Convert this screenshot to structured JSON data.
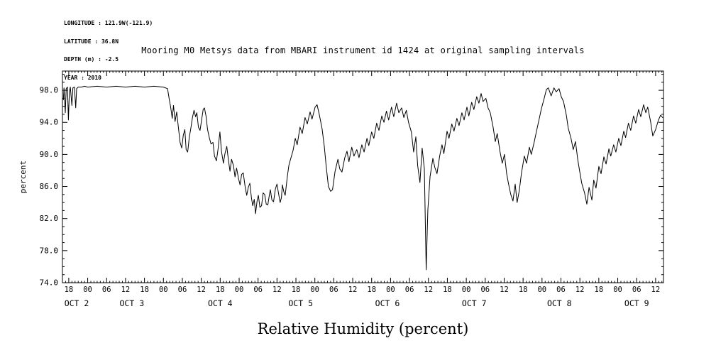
{
  "meta_block": {
    "lines": [
      "LONGITUDE : 121.9W(-121.9)",
      "LATITUDE : 36.8N",
      "DEPTH (m) : -2.5",
      "YEAR : 2010"
    ]
  },
  "chart_data": {
    "type": "line",
    "title": "Mooring M0 Metsys data from MBARI instrument id 1424 at original sampling intervals",
    "xlabel": "Relative Humidity (percent)",
    "ylabel": "percent",
    "x_unit": "hours since Oct 1 2010 00:00",
    "xlim_hours": [
      16,
      206.5
    ],
    "ylim": [
      74,
      100.4
    ],
    "grid": false,
    "legend": "none",
    "y_major_ticks": [
      {
        "value": 98,
        "label": "98.0"
      },
      {
        "value": 94,
        "label": "94.0"
      },
      {
        "value": 90,
        "label": "90.0"
      },
      {
        "value": 86,
        "label": "86.0"
      },
      {
        "value": 82,
        "label": "82.0"
      },
      {
        "value": 78,
        "label": "78.0"
      },
      {
        "value": 74,
        "label": "74.0"
      }
    ],
    "x_hour_ticks": [
      {
        "hour": 18,
        "label": "18"
      },
      {
        "hour": 24,
        "label": "00"
      },
      {
        "hour": 30,
        "label": "06"
      },
      {
        "hour": 36,
        "label": "12"
      },
      {
        "hour": 42,
        "label": "18"
      },
      {
        "hour": 48,
        "label": "00"
      },
      {
        "hour": 54,
        "label": "06"
      },
      {
        "hour": 60,
        "label": "12"
      },
      {
        "hour": 66,
        "label": "18"
      },
      {
        "hour": 72,
        "label": "00"
      },
      {
        "hour": 78,
        "label": "06"
      },
      {
        "hour": 84,
        "label": "12"
      },
      {
        "hour": 90,
        "label": "18"
      },
      {
        "hour": 96,
        "label": "00"
      },
      {
        "hour": 102,
        "label": "06"
      },
      {
        "hour": 108,
        "label": "12"
      },
      {
        "hour": 114,
        "label": "18"
      },
      {
        "hour": 120,
        "label": "00"
      },
      {
        "hour": 126,
        "label": "06"
      },
      {
        "hour": 132,
        "label": "12"
      },
      {
        "hour": 138,
        "label": "18"
      },
      {
        "hour": 144,
        "label": "00"
      },
      {
        "hour": 150,
        "label": "06"
      },
      {
        "hour": 156,
        "label": "12"
      },
      {
        "hour": 162,
        "label": "18"
      },
      {
        "hour": 168,
        "label": "00"
      },
      {
        "hour": 174,
        "label": "06"
      },
      {
        "hour": 180,
        "label": "12"
      },
      {
        "hour": 186,
        "label": "18"
      },
      {
        "hour": 192,
        "label": "00"
      },
      {
        "hour": 198,
        "label": "06"
      },
      {
        "hour": 204,
        "label": "12"
      }
    ],
    "x_date_labels": [
      {
        "label": "OCT 2",
        "hour": 20.5
      },
      {
        "label": "OCT 3",
        "hour": 38
      },
      {
        "label": "OCT 4",
        "hour": 66
      },
      {
        "label": "OCT 5",
        "hour": 91.5
      },
      {
        "label": "OCT 6",
        "hour": 119
      },
      {
        "label": "OCT 7",
        "hour": 146.5
      },
      {
        "label": "OCT 8",
        "hour": 173.5
      },
      {
        "label": "OCT 9",
        "hour": 198
      }
    ],
    "series": [
      {
        "name": "relative_humidity_percent",
        "color": "#000000",
        "points": [
          [
            16.3,
            96.8
          ],
          [
            16.5,
            98.3
          ],
          [
            16.9,
            95.2
          ],
          [
            17.2,
            98.2
          ],
          [
            17.6,
            98.4
          ],
          [
            17.9,
            94.3
          ],
          [
            18.2,
            97.8
          ],
          [
            18.5,
            98.4
          ],
          [
            19.0,
            96.1
          ],
          [
            19.3,
            98.3
          ],
          [
            19.8,
            98.4
          ],
          [
            20.2,
            95.8
          ],
          [
            20.5,
            98.2
          ],
          [
            21.0,
            98.4
          ],
          [
            22.0,
            98.4
          ],
          [
            23.0,
            98.5
          ],
          [
            24.0,
            98.4
          ],
          [
            27.0,
            98.5
          ],
          [
            30.0,
            98.4
          ],
          [
            33.0,
            98.5
          ],
          [
            36.0,
            98.4
          ],
          [
            39.0,
            98.5
          ],
          [
            42.0,
            98.4
          ],
          [
            45.0,
            98.5
          ],
          [
            48.0,
            98.4
          ],
          [
            49.3,
            98.2
          ],
          [
            49.8,
            97.0
          ],
          [
            50.3,
            95.9
          ],
          [
            50.8,
            94.5
          ],
          [
            51.2,
            96.1
          ],
          [
            51.7,
            94.1
          ],
          [
            52.2,
            95.3
          ],
          [
            52.8,
            93.2
          ],
          [
            53.3,
            91.5
          ],
          [
            53.8,
            90.8
          ],
          [
            54.3,
            92.4
          ],
          [
            54.8,
            93.1
          ],
          [
            55.2,
            90.6
          ],
          [
            55.7,
            90.3
          ],
          [
            56.2,
            92.1
          ],
          [
            56.7,
            93.3
          ],
          [
            57.2,
            94.6
          ],
          [
            57.7,
            95.5
          ],
          [
            58.2,
            94.7
          ],
          [
            58.6,
            95.2
          ],
          [
            59.1,
            93.4
          ],
          [
            59.6,
            93.0
          ],
          [
            60.1,
            94.3
          ],
          [
            60.6,
            95.6
          ],
          [
            61.0,
            95.8
          ],
          [
            61.5,
            94.8
          ],
          [
            62.0,
            93.1
          ],
          [
            62.6,
            92.0
          ],
          [
            63.1,
            91.3
          ],
          [
            63.7,
            91.5
          ],
          [
            64.2,
            89.8
          ],
          [
            64.8,
            89.2
          ],
          [
            65.3,
            90.6
          ],
          [
            65.9,
            92.8
          ],
          [
            66.4,
            90.4
          ],
          [
            67.0,
            88.9
          ],
          [
            67.5,
            90.1
          ],
          [
            68.1,
            91.0
          ],
          [
            68.6,
            89.3
          ],
          [
            69.1,
            87.9
          ],
          [
            69.6,
            89.4
          ],
          [
            70.2,
            88.6
          ],
          [
            70.7,
            87.2
          ],
          [
            71.2,
            88.3
          ],
          [
            71.8,
            87.0
          ],
          [
            72.3,
            86.2
          ],
          [
            72.8,
            87.5
          ],
          [
            73.3,
            87.7
          ],
          [
            73.9,
            86.0
          ],
          [
            74.4,
            84.9
          ],
          [
            74.9,
            85.9
          ],
          [
            75.4,
            86.4
          ],
          [
            75.9,
            84.6
          ],
          [
            76.3,
            83.6
          ],
          [
            76.8,
            84.4
          ],
          [
            77.2,
            82.6
          ],
          [
            77.7,
            84.2
          ],
          [
            78.1,
            84.9
          ],
          [
            78.6,
            83.4
          ],
          [
            79.1,
            83.6
          ],
          [
            79.6,
            85.2
          ],
          [
            80.1,
            85.0
          ],
          [
            80.6,
            83.8
          ],
          [
            81.1,
            83.7
          ],
          [
            81.6,
            85.0
          ],
          [
            81.9,
            85.6
          ],
          [
            82.4,
            84.3
          ],
          [
            82.9,
            84.1
          ],
          [
            83.5,
            85.7
          ],
          [
            84.0,
            86.3
          ],
          [
            84.5,
            85.1
          ],
          [
            85.0,
            84.0
          ],
          [
            85.4,
            84.6
          ],
          [
            85.7,
            86.2
          ],
          [
            86.2,
            85.3
          ],
          [
            86.6,
            84.9
          ],
          [
            87.3,
            87.3
          ],
          [
            87.8,
            88.7
          ],
          [
            89.1,
            90.5
          ],
          [
            89.8,
            92.0
          ],
          [
            90.4,
            91.2
          ],
          [
            91.3,
            93.4
          ],
          [
            92.0,
            92.6
          ],
          [
            92.9,
            94.6
          ],
          [
            93.6,
            93.8
          ],
          [
            94.5,
            95.3
          ],
          [
            95.1,
            94.4
          ],
          [
            96.1,
            95.9
          ],
          [
            96.7,
            96.2
          ],
          [
            97.4,
            95.0
          ],
          [
            98.3,
            93.2
          ],
          [
            99.0,
            91.0
          ],
          [
            99.6,
            88.5
          ],
          [
            100.3,
            86.0
          ],
          [
            101.0,
            85.4
          ],
          [
            101.6,
            85.6
          ],
          [
            102.4,
            87.9
          ],
          [
            103.3,
            89.4
          ],
          [
            103.9,
            88.2
          ],
          [
            104.6,
            87.8
          ],
          [
            105.5,
            89.6
          ],
          [
            106.2,
            90.4
          ],
          [
            106.8,
            89.1
          ],
          [
            107.7,
            90.9
          ],
          [
            108.4,
            89.8
          ],
          [
            109.3,
            90.6
          ],
          [
            110.0,
            89.6
          ],
          [
            110.9,
            91.2
          ],
          [
            111.6,
            90.3
          ],
          [
            112.5,
            92.0
          ],
          [
            113.1,
            91.1
          ],
          [
            114.0,
            92.8
          ],
          [
            114.7,
            92.0
          ],
          [
            115.6,
            93.9
          ],
          [
            116.3,
            93.0
          ],
          [
            117.2,
            94.8
          ],
          [
            117.9,
            94.0
          ],
          [
            118.7,
            95.4
          ],
          [
            119.4,
            94.3
          ],
          [
            120.3,
            95.9
          ],
          [
            121.0,
            94.7
          ],
          [
            121.9,
            96.4
          ],
          [
            122.6,
            95.2
          ],
          [
            123.5,
            95.8
          ],
          [
            124.2,
            94.6
          ],
          [
            125.0,
            95.5
          ],
          [
            125.7,
            94.0
          ],
          [
            126.6,
            92.8
          ],
          [
            127.3,
            90.3
          ],
          [
            128.0,
            92.2
          ],
          [
            128.6,
            88.6
          ],
          [
            129.3,
            86.5
          ],
          [
            130.0,
            90.8
          ],
          [
            130.7,
            88.2
          ],
          [
            131.3,
            75.6
          ],
          [
            131.8,
            83.0
          ],
          [
            132.5,
            87.2
          ],
          [
            133.4,
            89.5
          ],
          [
            134.0,
            88.4
          ],
          [
            134.7,
            87.6
          ],
          [
            135.6,
            89.9
          ],
          [
            136.3,
            91.2
          ],
          [
            136.9,
            90.1
          ],
          [
            137.9,
            92.9
          ],
          [
            138.5,
            92.0
          ],
          [
            139.4,
            93.8
          ],
          [
            140.1,
            92.9
          ],
          [
            141.0,
            94.5
          ],
          [
            141.7,
            93.6
          ],
          [
            142.6,
            95.2
          ],
          [
            143.3,
            94.3
          ],
          [
            144.2,
            95.9
          ],
          [
            144.8,
            94.8
          ],
          [
            145.7,
            96.5
          ],
          [
            146.4,
            95.6
          ],
          [
            147.3,
            97.2
          ],
          [
            148.0,
            96.4
          ],
          [
            148.7,
            97.6
          ],
          [
            149.3,
            96.6
          ],
          [
            150.2,
            97.0
          ],
          [
            150.9,
            95.8
          ],
          [
            151.6,
            95.2
          ],
          [
            152.5,
            93.4
          ],
          [
            153.2,
            91.6
          ],
          [
            153.8,
            92.6
          ],
          [
            154.7,
            90.3
          ],
          [
            155.4,
            88.9
          ],
          [
            156.1,
            90.0
          ],
          [
            156.8,
            87.6
          ],
          [
            157.4,
            86.3
          ],
          [
            158.1,
            85.0
          ],
          [
            158.8,
            84.2
          ],
          [
            159.5,
            86.3
          ],
          [
            160.1,
            84.0
          ],
          [
            160.8,
            85.5
          ],
          [
            161.5,
            87.7
          ],
          [
            162.4,
            89.8
          ],
          [
            163.1,
            88.9
          ],
          [
            164.0,
            90.9
          ],
          [
            164.6,
            90.0
          ],
          [
            165.5,
            91.5
          ],
          [
            166.2,
            92.8
          ],
          [
            167.1,
            94.4
          ],
          [
            167.8,
            95.7
          ],
          [
            168.7,
            97.0
          ],
          [
            169.4,
            98.1
          ],
          [
            170.0,
            98.3
          ],
          [
            170.9,
            97.3
          ],
          [
            171.8,
            98.3
          ],
          [
            172.5,
            97.8
          ],
          [
            173.4,
            98.2
          ],
          [
            174.1,
            97.2
          ],
          [
            174.8,
            96.6
          ],
          [
            175.7,
            94.9
          ],
          [
            176.3,
            93.3
          ],
          [
            177.2,
            92.0
          ],
          [
            177.9,
            90.6
          ],
          [
            178.6,
            91.6
          ],
          [
            179.3,
            89.4
          ],
          [
            179.9,
            88.0
          ],
          [
            180.6,
            86.4
          ],
          [
            181.5,
            85.2
          ],
          [
            182.2,
            83.8
          ],
          [
            182.9,
            85.9
          ],
          [
            183.8,
            84.3
          ],
          [
            184.4,
            86.8
          ],
          [
            185.1,
            85.8
          ],
          [
            186.0,
            88.5
          ],
          [
            186.7,
            87.6
          ],
          [
            187.6,
            89.7
          ],
          [
            188.3,
            88.8
          ],
          [
            189.2,
            90.7
          ],
          [
            189.8,
            89.8
          ],
          [
            190.7,
            91.2
          ],
          [
            191.4,
            90.3
          ],
          [
            192.3,
            92.0
          ],
          [
            193.0,
            91.1
          ],
          [
            193.9,
            92.9
          ],
          [
            194.5,
            92.1
          ],
          [
            195.4,
            93.9
          ],
          [
            196.1,
            93.0
          ],
          [
            197.0,
            94.8
          ],
          [
            197.7,
            93.9
          ],
          [
            198.6,
            95.6
          ],
          [
            199.3,
            94.7
          ],
          [
            200.2,
            96.2
          ],
          [
            200.9,
            95.2
          ],
          [
            201.5,
            95.9
          ],
          [
            202.4,
            94.1
          ],
          [
            203.1,
            92.3
          ],
          [
            204.0,
            93.1
          ],
          [
            204.9,
            94.3
          ],
          [
            205.6,
            94.9
          ],
          [
            206.2,
            94.6
          ]
        ]
      }
    ]
  }
}
